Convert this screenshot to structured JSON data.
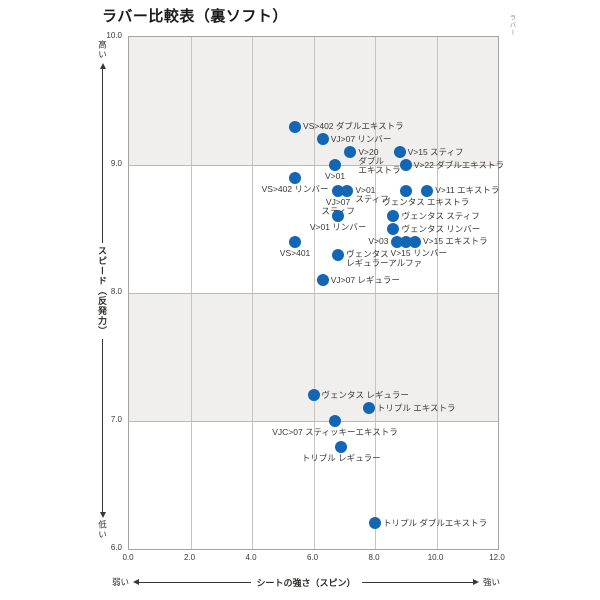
{
  "page": {
    "title": "ラバー比較表（裏ソフト）",
    "corner_label": "ラバー"
  },
  "chart_data": {
    "type": "scatter",
    "title": "ラバー比較表（裏ソフト）",
    "xlabel": "シートの強さ（スピン）",
    "ylabel": "スピード（反発力）",
    "x_axis_low_label": "弱い",
    "x_axis_high_label": "強い",
    "y_axis_high_label": "高い",
    "y_axis_low_label": "低い",
    "xlim": [
      0.0,
      12.0
    ],
    "ylim": [
      6.0,
      10.0
    ],
    "x_tick_labels": [
      "0.0",
      "2.0",
      "4.0",
      "6.0",
      "8.0",
      "10.0",
      "12.0"
    ],
    "x_tick_values": [
      0,
      2,
      4,
      6,
      8,
      10,
      12
    ],
    "y_tick_labels": [
      "10.0",
      "9.0",
      "8.0",
      "7.0",
      "6.0"
    ],
    "y_tick_values": [
      10,
      9,
      8,
      7,
      6
    ],
    "grid": true,
    "shaded_bands_y": [
      [
        9.0,
        10.0
      ],
      [
        7.0,
        8.0
      ]
    ],
    "point_color": "#1366b4",
    "band_color": "#f0efed",
    "points": [
      {
        "label": "VS>402 ダブルエキストラ",
        "x": 5.4,
        "y": 9.3,
        "label_pos": "right"
      },
      {
        "label": "VJ>07 リンバー",
        "x": 6.3,
        "y": 9.2,
        "label_pos": "right"
      },
      {
        "label": "V>20 ダブルエキストラ",
        "label_lines": [
          "V>20",
          "ダブル",
          "エキストラ"
        ],
        "x": 7.2,
        "y": 9.1,
        "label_pos": "right"
      },
      {
        "label": "V>15 スティフ",
        "x": 8.8,
        "y": 9.1,
        "label_pos": "right"
      },
      {
        "label": "V>22 ダブルエキストラ",
        "x": 9.0,
        "y": 9.0,
        "label_pos": "right"
      },
      {
        "label": "V>01",
        "x": 6.7,
        "y": 9.0,
        "label_pos": "below"
      },
      {
        "label": "VS>402 リンバー",
        "x": 5.4,
        "y": 8.9,
        "label_pos": "below"
      },
      {
        "label": "VJ>07 スティフ",
        "label_lines": [
          "VJ>07",
          "スティフ"
        ],
        "x": 6.8,
        "y": 8.8,
        "label_pos": "below"
      },
      {
        "label": "V>01 スティフ",
        "label_lines": [
          "V>01",
          "スティフ"
        ],
        "x": 7.1,
        "y": 8.8,
        "label_pos": "right"
      },
      {
        "label": "ヴェンタス エキストラ",
        "x": 9.0,
        "y": 8.8,
        "label_pos": "below",
        "label_dx": 20
      },
      {
        "label": "V>11 エキストラ",
        "x": 9.7,
        "y": 8.8,
        "label_pos": "right"
      },
      {
        "label": "V>01 リンバー",
        "x": 6.8,
        "y": 8.6,
        "label_pos": "below"
      },
      {
        "label": "ヴェンタス スティフ",
        "x": 8.6,
        "y": 8.6,
        "label_pos": "right"
      },
      {
        "label": "ヴェンタス リンバー",
        "x": 8.6,
        "y": 8.5,
        "label_pos": "right"
      },
      {
        "label": "VS>401",
        "x": 5.4,
        "y": 8.4,
        "label_pos": "below"
      },
      {
        "label": "V>03",
        "x": 8.7,
        "y": 8.4,
        "label_pos": "left"
      },
      {
        "label": "V>15 リンバー",
        "x": 9.0,
        "y": 8.4,
        "label_pos": "below",
        "label_dx": 13
      },
      {
        "label": "V>15 エキストラ",
        "x": 9.3,
        "y": 8.4,
        "label_pos": "right"
      },
      {
        "label": "ヴェンタス レギュラーアルファ",
        "label_lines": [
          "ヴェンタス",
          "レギュラーアルファ"
        ],
        "x": 6.8,
        "y": 8.3,
        "label_pos": "right"
      },
      {
        "label": "VJ>07 レギュラー",
        "x": 6.3,
        "y": 8.1,
        "label_pos": "right"
      },
      {
        "label": "ヴェンタス レギュラー",
        "x": 6.0,
        "y": 7.2,
        "label_pos": "right"
      },
      {
        "label": "トリプル エキストラ",
        "x": 7.8,
        "y": 7.1,
        "label_pos": "right"
      },
      {
        "label": "VJC>07 スティッキーエキストラ",
        "x": 6.7,
        "y": 7.0,
        "label_pos": "below"
      },
      {
        "label": "トリプル レギュラー",
        "x": 6.9,
        "y": 6.8,
        "label_pos": "below"
      },
      {
        "label": "トリプル ダブルエキストラ",
        "x": 8.0,
        "y": 6.2,
        "label_pos": "right"
      }
    ]
  }
}
